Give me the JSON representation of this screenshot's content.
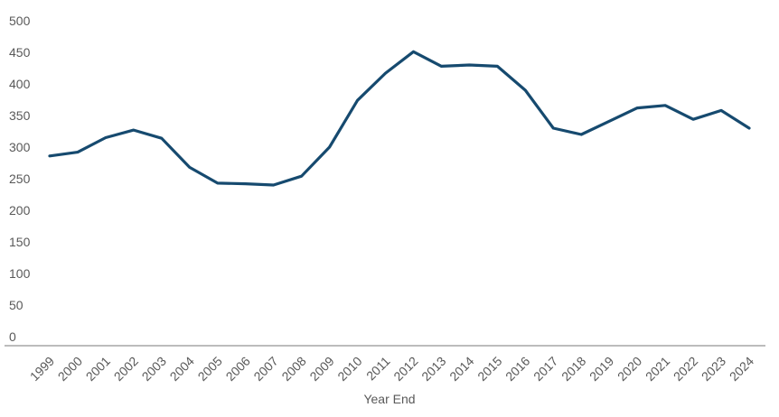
{
  "chart_data": {
    "type": "line",
    "title": "",
    "xlabel": "Year End",
    "ylabel": "",
    "x": [
      "1999",
      "2000",
      "2001",
      "2002",
      "2003",
      "2004",
      "2005",
      "2006",
      "2007",
      "2008",
      "2009",
      "2010",
      "2011",
      "2012",
      "2013",
      "2014",
      "2015",
      "2016",
      "2017",
      "2018",
      "2019",
      "2020",
      "2021",
      "2022",
      "2023",
      "2024"
    ],
    "series": [
      {
        "color": "#164a6f",
        "values": [
          286,
          292,
          315,
          327,
          314,
          268,
          243,
          242,
          240,
          254,
          300,
          374,
          417,
          451,
          428,
          430,
          428,
          390,
          330,
          320,
          341,
          362,
          366,
          344,
          358,
          330
        ]
      }
    ],
    "ylim": [
      0,
      500
    ],
    "yticks": [
      0,
      50,
      100,
      150,
      200,
      250,
      300,
      350,
      400,
      450,
      500
    ],
    "grid": false,
    "legend": "none",
    "colors": {
      "line": "#164a6f",
      "text": "#595959",
      "axis_line": "#a6a6a6",
      "background": "#ffffff"
    }
  }
}
